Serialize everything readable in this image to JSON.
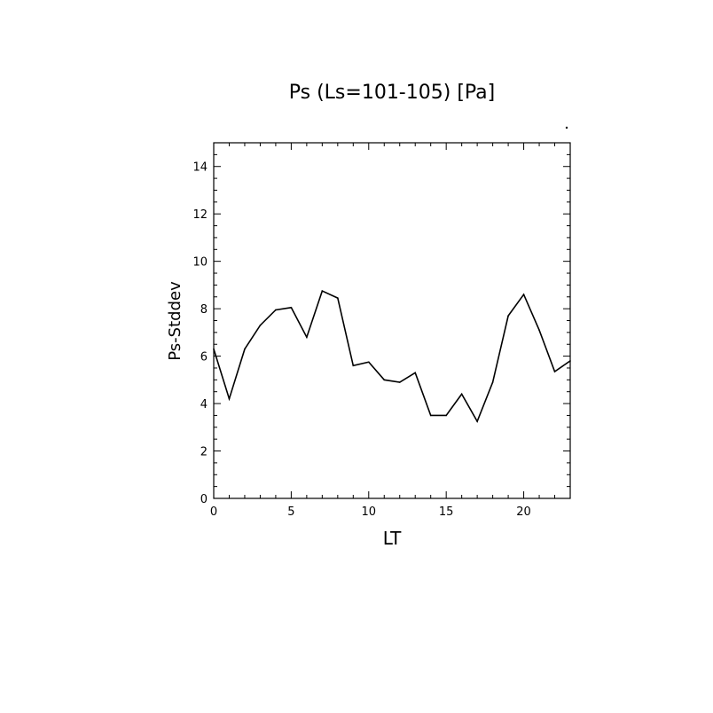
{
  "chart_data": {
    "type": "line",
    "title": "Ps (Ls=101-105) [Pa]",
    "xlabel": "LT",
    "ylabel": "Ps-Stddev",
    "xlim": [
      0,
      23
    ],
    "ylim": [
      0,
      15
    ],
    "x_ticks": [
      "0",
      "5",
      "10",
      "15",
      "20"
    ],
    "y_ticks": [
      "0",
      "2",
      "4",
      "6",
      "8",
      "10",
      "12",
      "14"
    ],
    "grid": false,
    "series": [
      {
        "x": [
          0,
          1,
          2,
          3,
          4,
          5,
          6,
          7,
          8,
          9,
          10,
          11,
          12,
          13,
          14,
          15,
          16,
          17,
          18,
          19,
          20,
          21,
          22,
          23
        ],
        "y": [
          6.3,
          4.2,
          6.3,
          7.3,
          7.95,
          8.05,
          6.8,
          8.75,
          8.45,
          5.6,
          5.75,
          5.0,
          4.9,
          5.3,
          3.5,
          3.5,
          4.4,
          3.25,
          4.9,
          7.7,
          8.6,
          7.1,
          5.35,
          5.8
        ]
      }
    ]
  }
}
